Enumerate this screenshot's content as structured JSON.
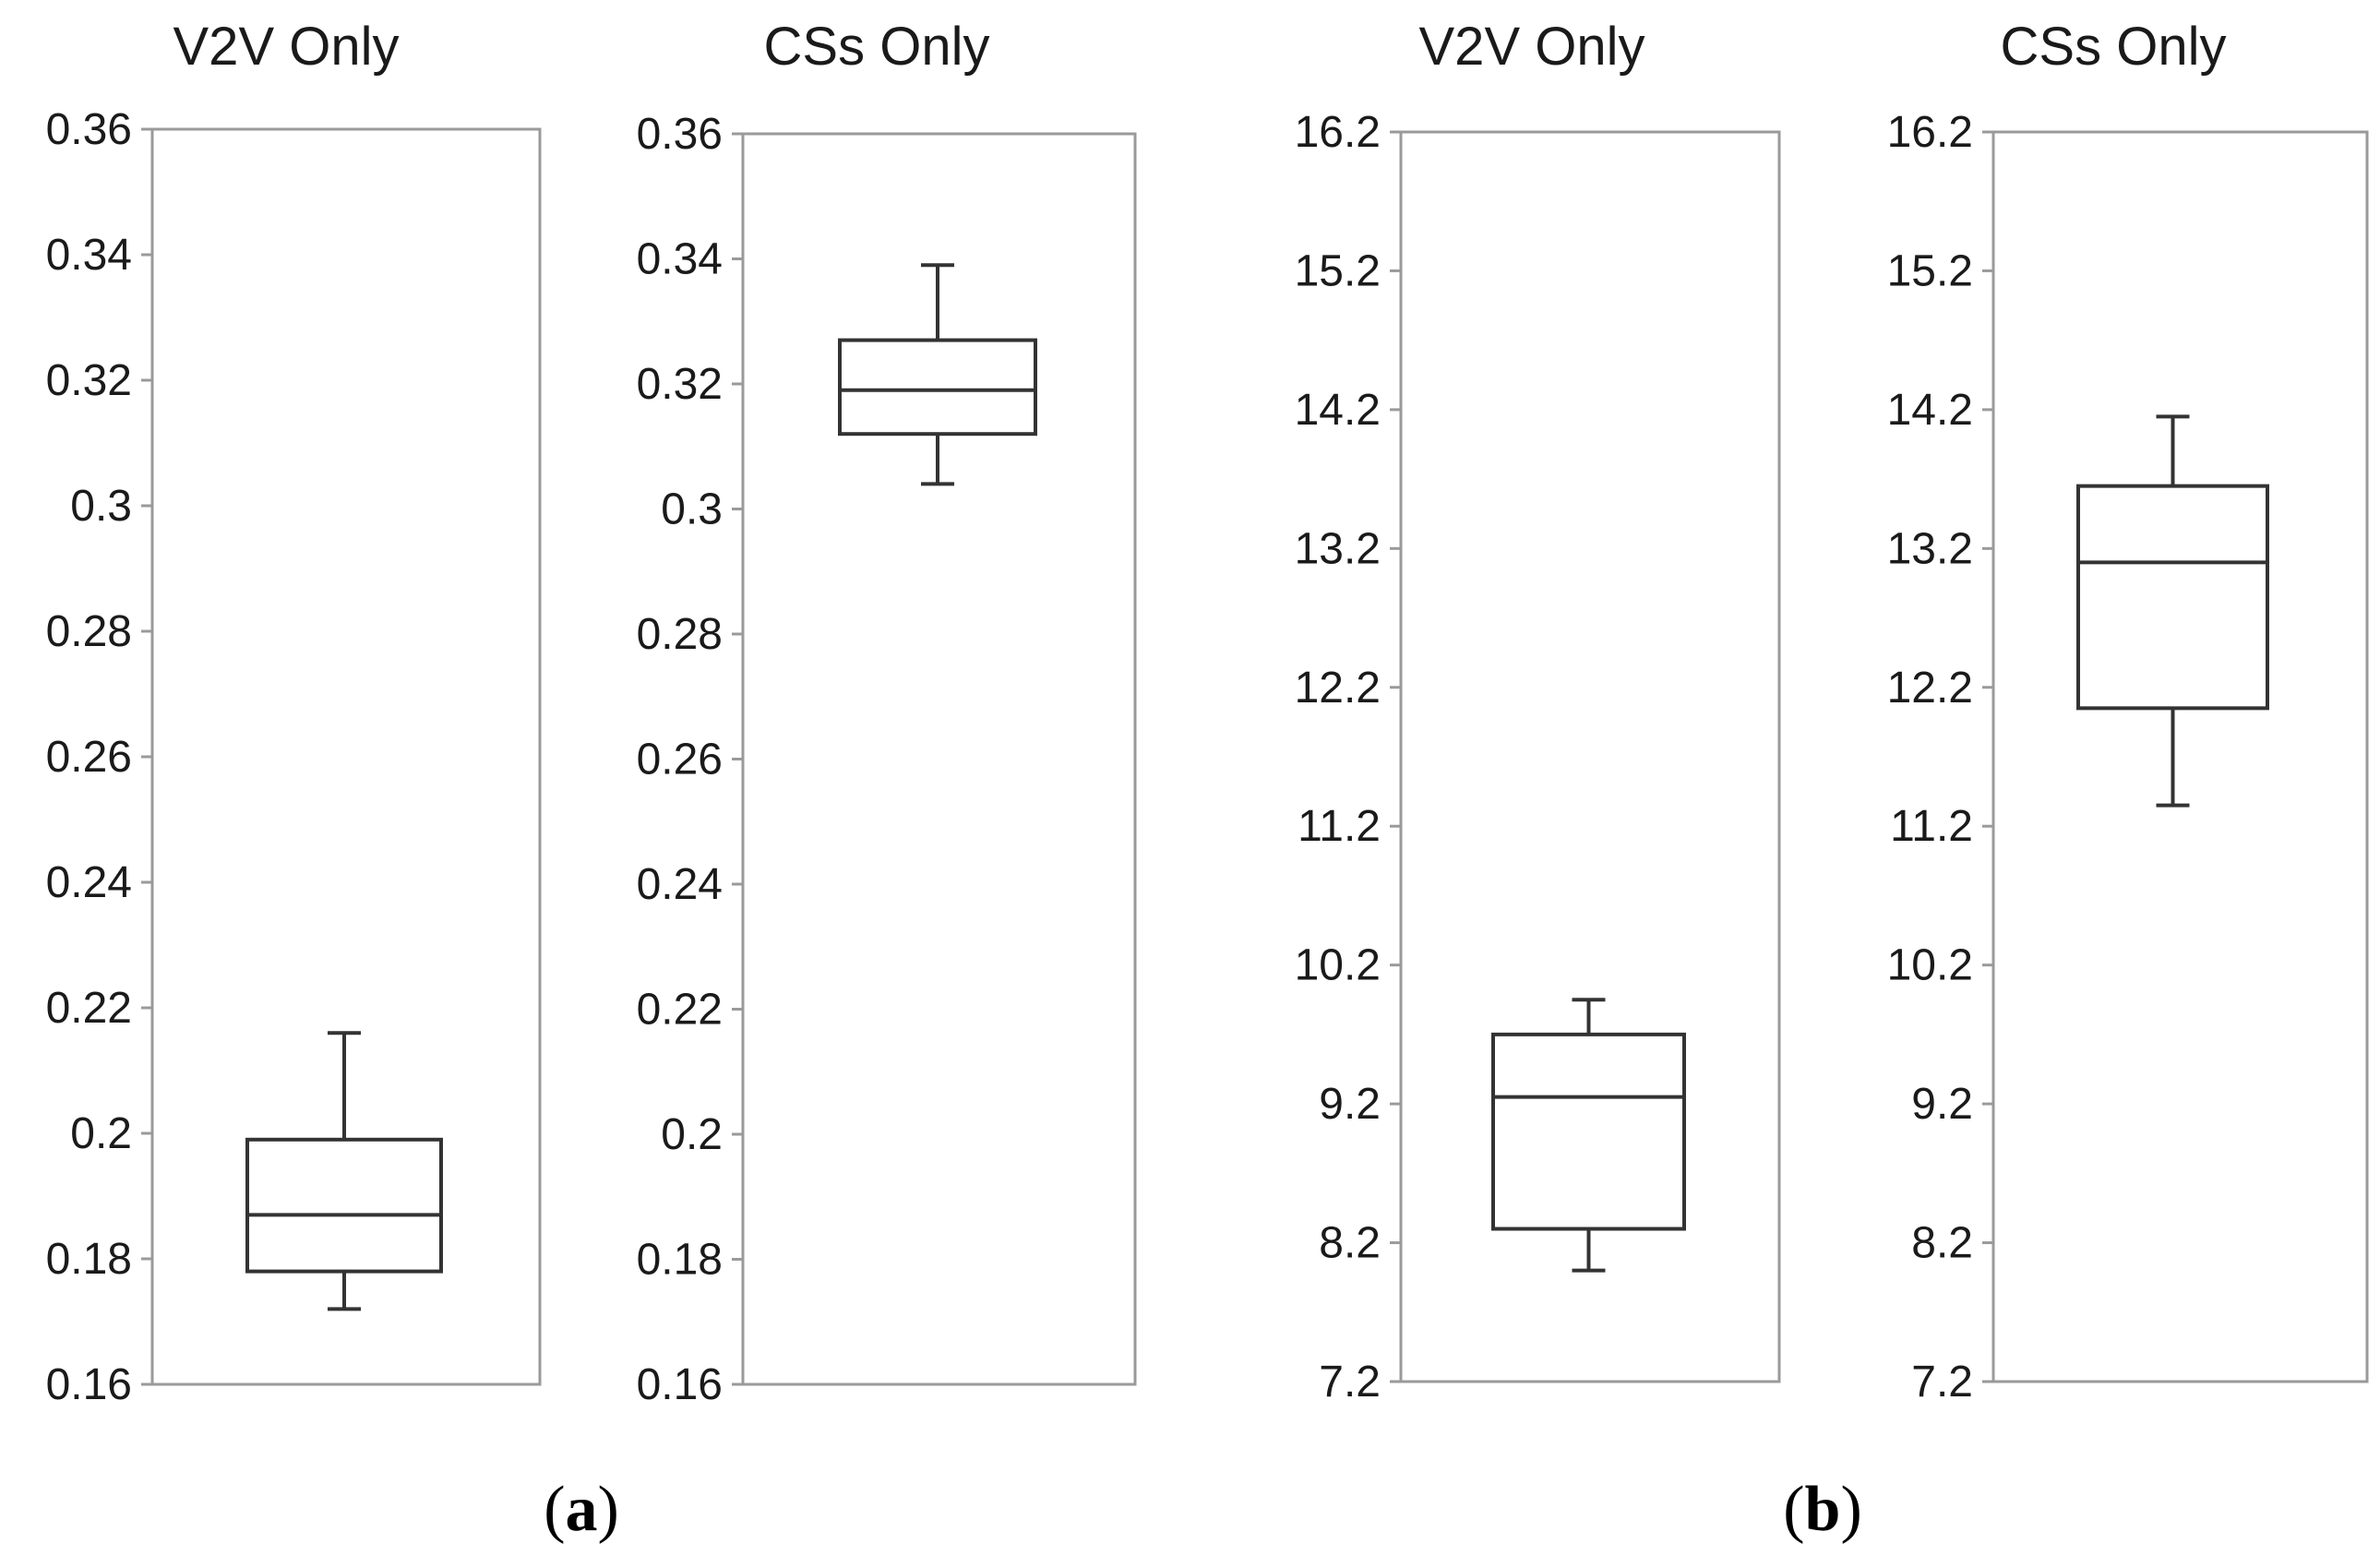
{
  "chart_data": [
    {
      "type": "box",
      "title": "V2V Only",
      "ylim": [
        0.16,
        0.36
      ],
      "yticks": [
        "0.36",
        "0.34",
        "0.32",
        "0.3",
        "0.28",
        "0.26",
        "0.24",
        "0.22",
        "0.2",
        "0.18",
        "0.16"
      ],
      "ytick_values": [
        0.36,
        0.34,
        0.32,
        0.3,
        0.28,
        0.26,
        0.24,
        0.22,
        0.2,
        0.18,
        0.16
      ],
      "box": {
        "whisker_low": 0.172,
        "q1": 0.178,
        "median": 0.187,
        "q3": 0.199,
        "whisker_high": 0.216
      }
    },
    {
      "type": "box",
      "title": "CSs Only",
      "ylim": [
        0.16,
        0.36
      ],
      "yticks": [
        "0.36",
        "0.34",
        "0.32",
        "0.3",
        "0.28",
        "0.26",
        "0.24",
        "0.22",
        "0.2",
        "0.18",
        "0.16"
      ],
      "ytick_values": [
        0.36,
        0.34,
        0.32,
        0.3,
        0.28,
        0.26,
        0.24,
        0.22,
        0.2,
        0.18,
        0.16
      ],
      "box": {
        "whisker_low": 0.304,
        "q1": 0.312,
        "median": 0.319,
        "q3": 0.327,
        "whisker_high": 0.339
      }
    },
    {
      "type": "box",
      "title": "V2V Only",
      "ylim": [
        7.2,
        16.2
      ],
      "yticks": [
        "16.2",
        "15.2",
        "14.2",
        "13.2",
        "12.2",
        "11.2",
        "10.2",
        "9.2",
        "8.2",
        "7.2"
      ],
      "ytick_values": [
        16.2,
        15.2,
        14.2,
        13.2,
        12.2,
        11.2,
        10.2,
        9.2,
        8.2,
        7.2
      ],
      "box": {
        "whisker_low": 8.0,
        "q1": 8.3,
        "median": 9.25,
        "q3": 9.7,
        "whisker_high": 9.95
      }
    },
    {
      "type": "box",
      "title": "CSs Only",
      "ylim": [
        7.2,
        16.2
      ],
      "yticks": [
        "16.2",
        "15.2",
        "14.2",
        "13.2",
        "12.2",
        "11.2",
        "10.2",
        "9.2",
        "8.2",
        "7.2"
      ],
      "ytick_values": [
        16.2,
        15.2,
        14.2,
        13.2,
        12.2,
        11.2,
        10.2,
        9.2,
        8.2,
        7.2
      ],
      "box": {
        "whisker_low": 11.35,
        "q1": 12.05,
        "median": 13.1,
        "q3": 13.65,
        "whisker_high": 14.15
      }
    }
  ],
  "captions": [
    {
      "open": "(",
      "letter": "a",
      "close": ")"
    },
    {
      "open": "(",
      "letter": "b",
      "close": ")"
    }
  ],
  "colors": {
    "frame": "#9a9a9a",
    "box": "#333333",
    "text": "#1a1a1a"
  }
}
